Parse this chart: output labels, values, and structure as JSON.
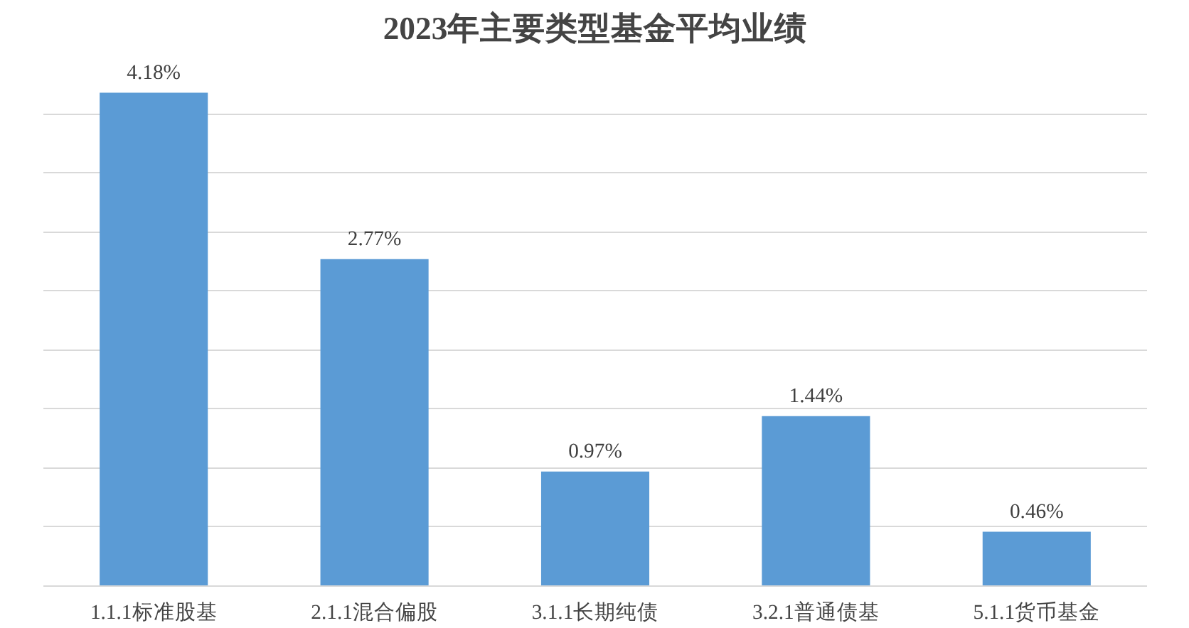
{
  "chart_data": {
    "type": "bar",
    "title": "2023年主要类型基金平均业绩",
    "categories": [
      "1.1.1标准股基",
      "2.1.1混合偏股",
      "3.1.1长期纯债",
      "3.2.1普通债基",
      "5.1.1货币基金"
    ],
    "values": [
      4.18,
      2.77,
      0.97,
      1.44,
      0.46
    ],
    "value_labels": [
      "4.18%",
      "2.77%",
      "0.97%",
      "1.44%",
      "0.46%"
    ],
    "color": "#5b9bd5",
    "yticks": [
      {
        "value": 0,
        "label": null
      },
      {
        "value": 0.5,
        "label": null
      },
      {
        "value": 1,
        "label": null
      },
      {
        "value": 1.5,
        "label": null
      },
      {
        "value": 2,
        "label": null
      },
      {
        "value": 2.5,
        "label": null
      },
      {
        "value": 3,
        "label": null
      },
      {
        "value": 3.5,
        "label": null
      },
      {
        "value": 4,
        "label": null
      }
    ],
    "grid": "y",
    "tick_labels": "x"
  }
}
